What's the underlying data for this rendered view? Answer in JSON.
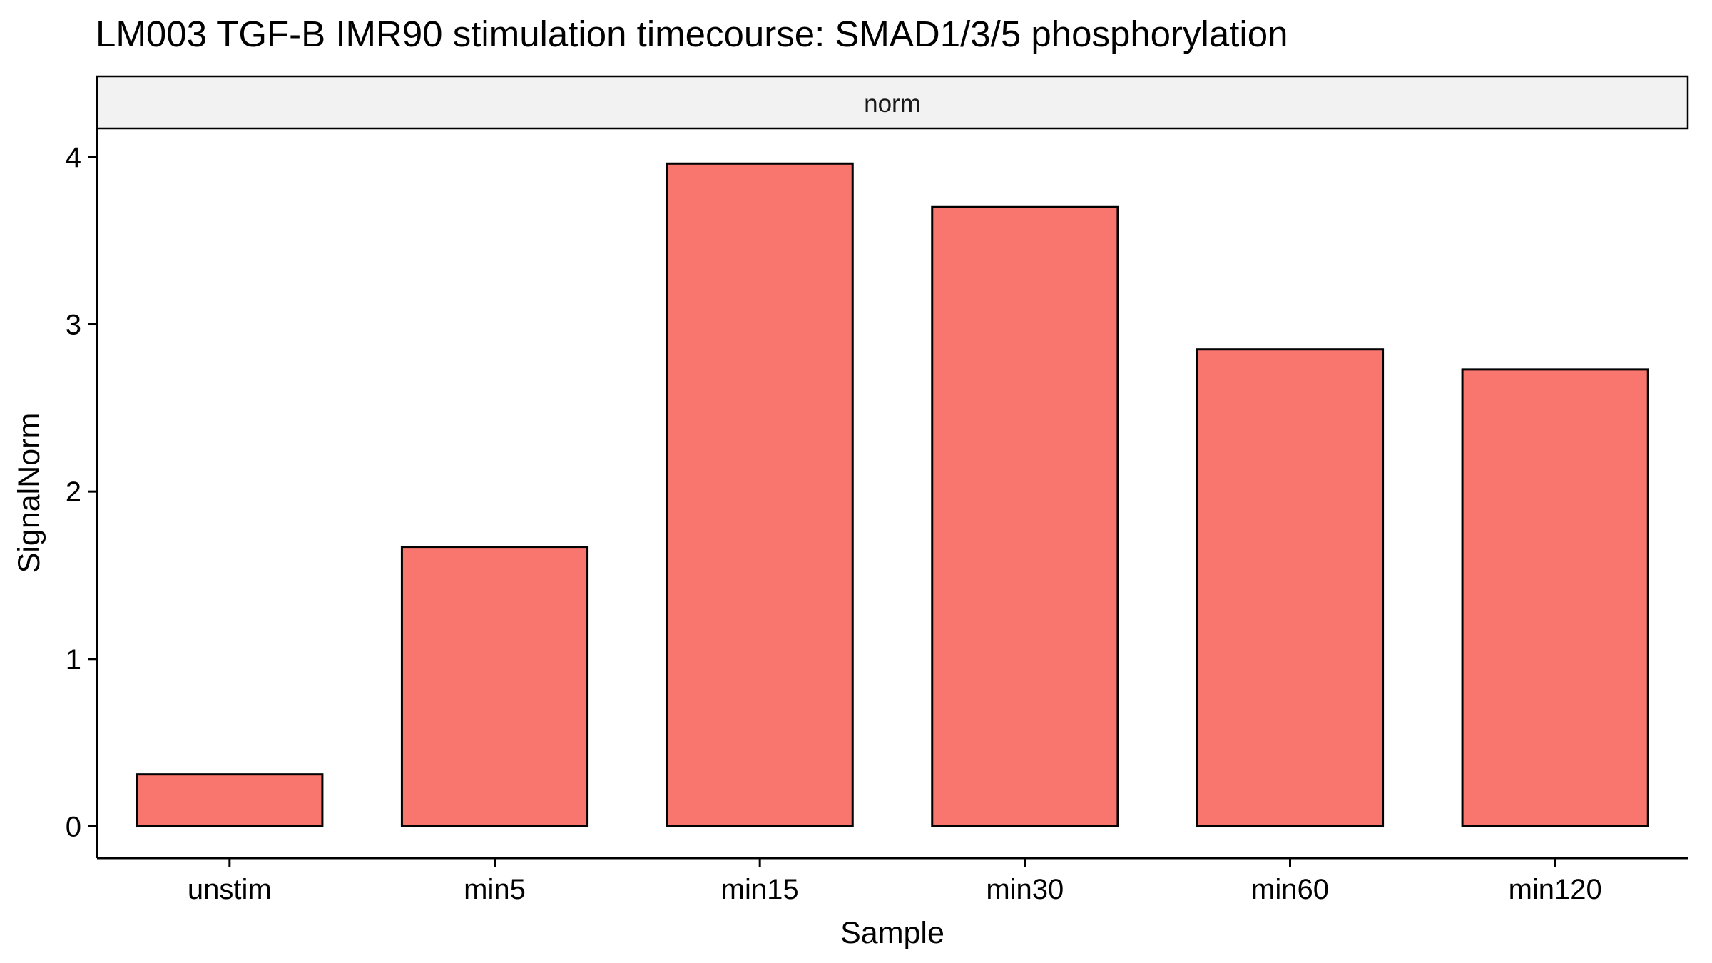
{
  "chart_data": {
    "type": "bar",
    "title": "LM003 TGF-B IMR90 stimulation timecourse: SMAD1/3/5 phosphorylation",
    "facet_label": "norm",
    "xlabel": "Sample",
    "ylabel": "SignalNorm",
    "categories": [
      "unstim",
      "min5",
      "min15",
      "min30",
      "min60",
      "min120"
    ],
    "values": [
      0.31,
      1.67,
      3.96,
      3.7,
      2.85,
      2.73
    ],
    "ylim": [
      -0.19,
      4.17
    ],
    "yticks": [
      0,
      1,
      2,
      3,
      4
    ],
    "bar_color": "#F8766D",
    "bar_outline_color": "#000000",
    "strip_color": "#F2F2F2",
    "grid": false,
    "legend": "none"
  }
}
